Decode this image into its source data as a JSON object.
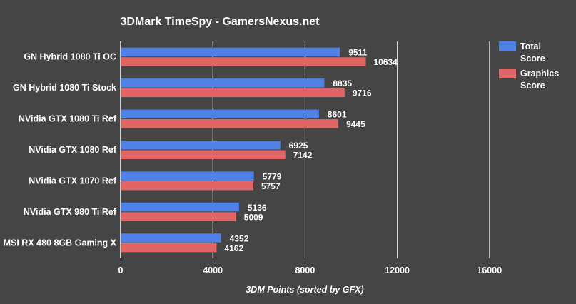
{
  "chart_data": {
    "type": "bar",
    "orientation": "horizontal",
    "title": "3DMark TimeSpy - GamersNexus.net",
    "xlabel": "3DM Points (sorted by GFX)",
    "ylabel": "",
    "xlim": [
      0,
      20000
    ],
    "xticks": [
      0,
      4000,
      8000,
      12000,
      16000
    ],
    "grid": true,
    "legend_position": "top-right",
    "categories": [
      "GN Hybrid 1080 Ti OC",
      "GN Hybrid 1080 Ti Stock",
      "NVidia GTX 1080 Ti Ref",
      "NVidia GTX 1080 Ref",
      "NVidia GTX 1070 Ref",
      "NVidia GTX 980 Ti Ref",
      "MSI RX 480 8GB Gaming X"
    ],
    "series": [
      {
        "name": [
          "Total",
          "Score"
        ],
        "color": "#4f81e6",
        "values": [
          9511,
          8835,
          8601,
          6925,
          5779,
          5136,
          4352
        ]
      },
      {
        "name": [
          "Graphics",
          "Score"
        ],
        "color": "#e06666",
        "values": [
          10634,
          9716,
          9445,
          7142,
          5757,
          5009,
          4162
        ]
      }
    ]
  }
}
